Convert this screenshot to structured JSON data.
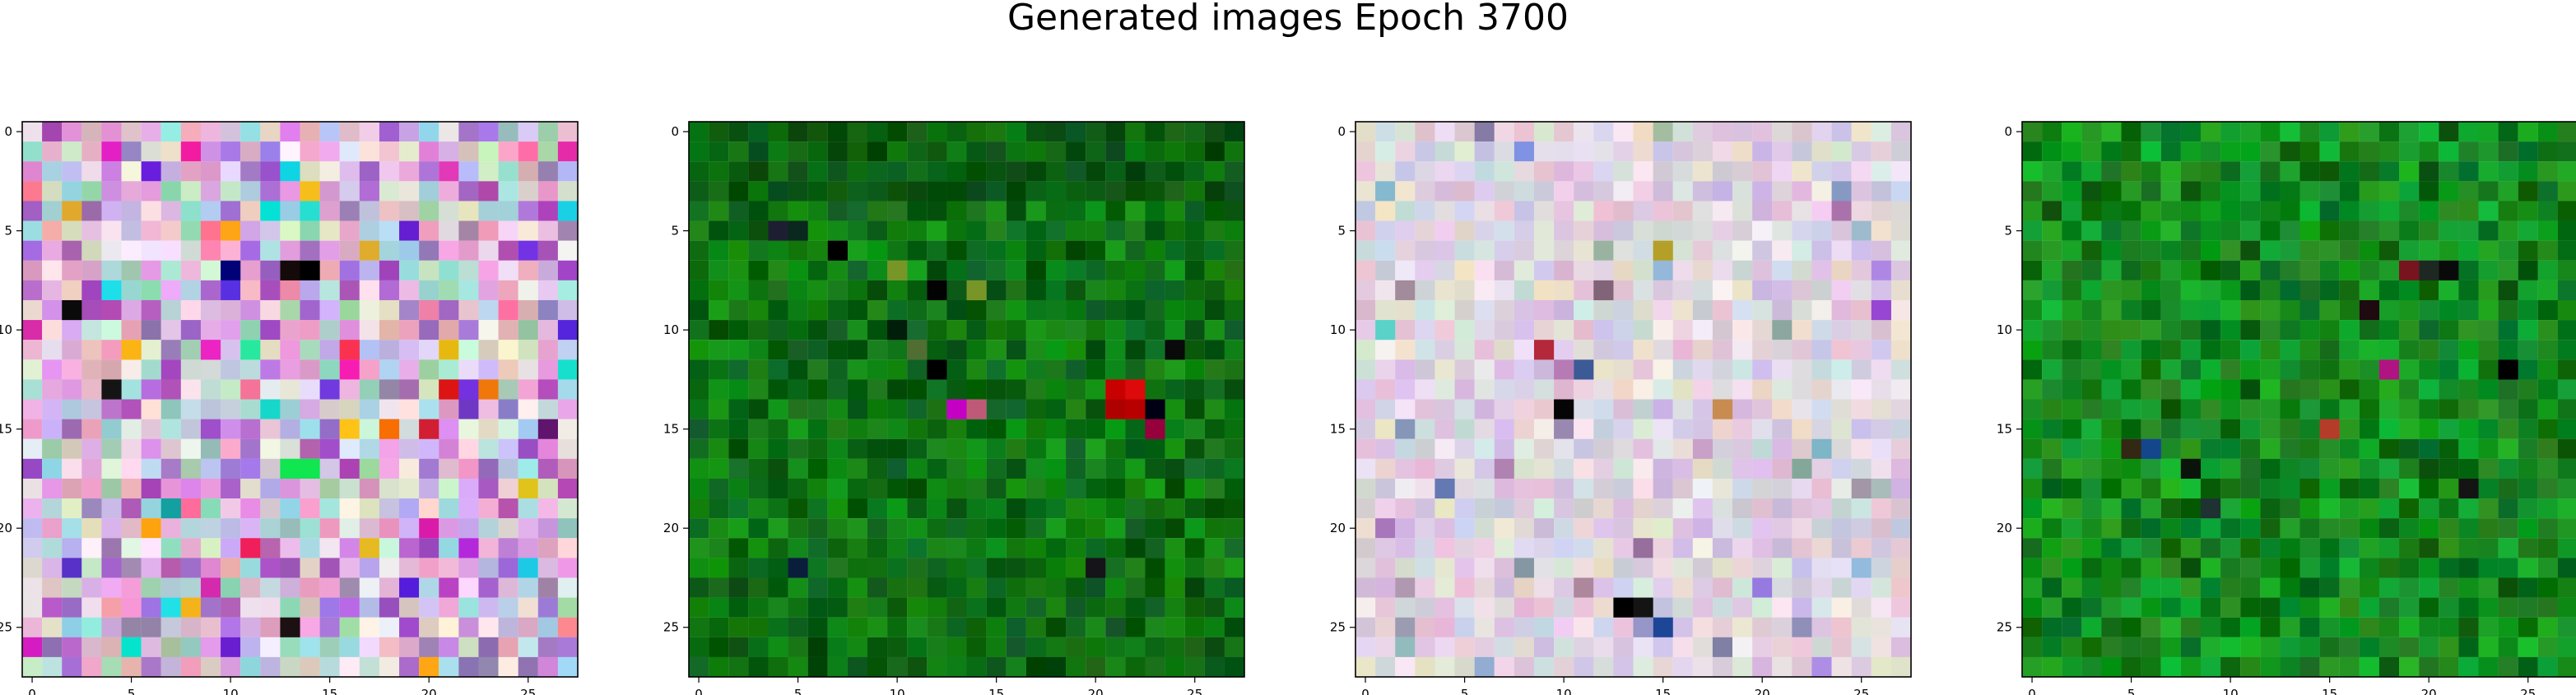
{
  "figure": {
    "title": "Generated images Epoch 3700"
  },
  "chart_data": [
    {
      "type": "heatmap",
      "panel": 1,
      "dominant_palette": "mixed pastel colors (pink, lavender, cream, teal) with scattered saturated pixels",
      "grid": false,
      "xlim": [
        0,
        27
      ],
      "ylim": [
        27,
        0
      ],
      "xticks": [
        "0",
        "5",
        "10",
        "15",
        "20",
        "25"
      ],
      "yticks": [
        "0",
        "5",
        "10",
        "15",
        "20",
        "25"
      ]
    },
    {
      "type": "heatmap",
      "panel": 2,
      "dominant_palette": "mostly green pixels with a few dark, red and magenta pixels",
      "grid": false,
      "xlim": [
        0,
        27
      ],
      "ylim": [
        27,
        0
      ],
      "xticks": [
        "0",
        "5",
        "10",
        "15",
        "20",
        "25"
      ],
      "yticks": [
        "0",
        "5",
        "10",
        "15",
        "20",
        "25"
      ]
    },
    {
      "type": "heatmap",
      "panel": 3,
      "dominant_palette": "pale lavender, pink and beige pixels with a few dark pixels",
      "grid": false,
      "xlim": [
        0,
        27
      ],
      "ylim": [
        27,
        0
      ],
      "xticks": [
        "0",
        "5",
        "10",
        "15",
        "20",
        "25"
      ],
      "yticks": [
        "0",
        "5",
        "10",
        "15",
        "20",
        "25"
      ]
    },
    {
      "type": "heatmap",
      "panel": 4,
      "dominant_palette": "mostly green pixels with some dark and deep red pixels",
      "grid": false,
      "xlim": [
        0,
        27
      ],
      "ylim": [
        27,
        0
      ],
      "xticks": [
        "0",
        "5",
        "10",
        "15",
        "20",
        "25"
      ],
      "yticks": [
        "0",
        "5",
        "10",
        "15",
        "20",
        "25"
      ]
    }
  ]
}
